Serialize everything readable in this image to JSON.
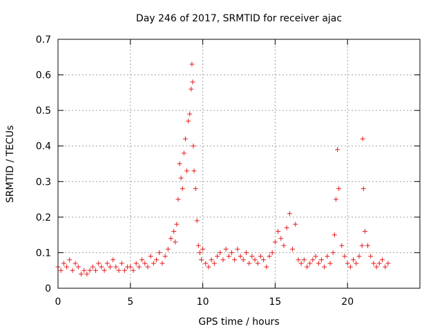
{
  "chart_data": {
    "type": "scatter",
    "title": "Day 246 of 2017, SRMTID for receiver ajac",
    "xlabel": "GPS time / hours",
    "ylabel": "SRMTID / TECUs",
    "xlim": [
      0,
      25
    ],
    "ylim": [
      0,
      0.7
    ],
    "xticks": [
      0,
      5,
      10,
      15,
      20
    ],
    "xtick_labels": [
      "0",
      "5",
      "10",
      "15",
      "20"
    ],
    "yticks": [
      0,
      0.1,
      0.2,
      0.3,
      0.4,
      0.5,
      0.6,
      0.7
    ],
    "ytick_labels": [
      "0",
      "0.1",
      "0.2",
      "0.3",
      "0.4",
      "0.5",
      "0.6",
      "0.7"
    ],
    "grid": true,
    "marker": "+",
    "marker_color": "#e41a1c",
    "series": [
      {
        "name": "SRMTID",
        "x": [
          0.0,
          0.2,
          0.4,
          0.6,
          0.8,
          1.0,
          1.2,
          1.4,
          1.6,
          1.8,
          2.0,
          2.2,
          2.4,
          2.6,
          2.8,
          3.0,
          3.2,
          3.4,
          3.6,
          3.8,
          4.0,
          4.2,
          4.4,
          4.6,
          4.8,
          5.0,
          5.2,
          5.4,
          5.6,
          5.8,
          6.0,
          6.2,
          6.4,
          6.6,
          6.8,
          7.0,
          7.2,
          7.4,
          7.6,
          7.8,
          8.0,
          8.1,
          8.2,
          8.3,
          8.4,
          8.5,
          8.6,
          8.7,
          8.8,
          8.9,
          9.0,
          9.1,
          9.2,
          9.25,
          9.3,
          9.35,
          9.4,
          9.5,
          9.6,
          9.7,
          9.8,
          9.9,
          10.0,
          10.2,
          10.4,
          10.6,
          10.8,
          11.0,
          11.2,
          11.4,
          11.6,
          11.8,
          12.0,
          12.2,
          12.4,
          12.6,
          12.8,
          13.0,
          13.2,
          13.4,
          13.6,
          13.8,
          14.0,
          14.2,
          14.4,
          14.6,
          14.8,
          15.0,
          15.2,
          15.4,
          15.6,
          15.8,
          16.0,
          16.2,
          16.4,
          16.6,
          16.8,
          17.0,
          17.2,
          17.4,
          17.6,
          17.8,
          18.0,
          18.2,
          18.4,
          18.6,
          18.8,
          19.0,
          19.1,
          19.2,
          19.3,
          19.4,
          19.6,
          19.8,
          20.0,
          20.2,
          20.4,
          20.6,
          20.8,
          21.0,
          21.05,
          21.1,
          21.2,
          21.4,
          21.6,
          21.8,
          22.0,
          22.2,
          22.4,
          22.6,
          22.8
        ],
        "y": [
          0.06,
          0.05,
          0.07,
          0.06,
          0.08,
          0.05,
          0.07,
          0.06,
          0.04,
          0.05,
          0.04,
          0.05,
          0.06,
          0.05,
          0.07,
          0.06,
          0.05,
          0.07,
          0.06,
          0.08,
          0.06,
          0.05,
          0.07,
          0.05,
          0.06,
          0.06,
          0.05,
          0.07,
          0.06,
          0.08,
          0.07,
          0.06,
          0.09,
          0.07,
          0.08,
          0.1,
          0.07,
          0.09,
          0.11,
          0.14,
          0.16,
          0.13,
          0.18,
          0.25,
          0.35,
          0.31,
          0.28,
          0.38,
          0.42,
          0.33,
          0.47,
          0.49,
          0.56,
          0.63,
          0.58,
          0.4,
          0.33,
          0.28,
          0.19,
          0.12,
          0.1,
          0.08,
          0.11,
          0.07,
          0.06,
          0.08,
          0.07,
          0.09,
          0.1,
          0.08,
          0.11,
          0.09,
          0.1,
          0.08,
          0.11,
          0.09,
          0.08,
          0.1,
          0.07,
          0.09,
          0.08,
          0.07,
          0.09,
          0.08,
          0.06,
          0.09,
          0.1,
          0.13,
          0.16,
          0.14,
          0.12,
          0.17,
          0.21,
          0.11,
          0.18,
          0.08,
          0.07,
          0.08,
          0.06,
          0.07,
          0.08,
          0.09,
          0.07,
          0.08,
          0.06,
          0.09,
          0.07,
          0.1,
          0.15,
          0.25,
          0.39,
          0.28,
          0.12,
          0.09,
          0.07,
          0.06,
          0.08,
          0.07,
          0.09,
          0.12,
          0.42,
          0.28,
          0.16,
          0.12,
          0.09,
          0.07,
          0.06,
          0.07,
          0.08,
          0.06,
          0.07
        ]
      }
    ]
  }
}
